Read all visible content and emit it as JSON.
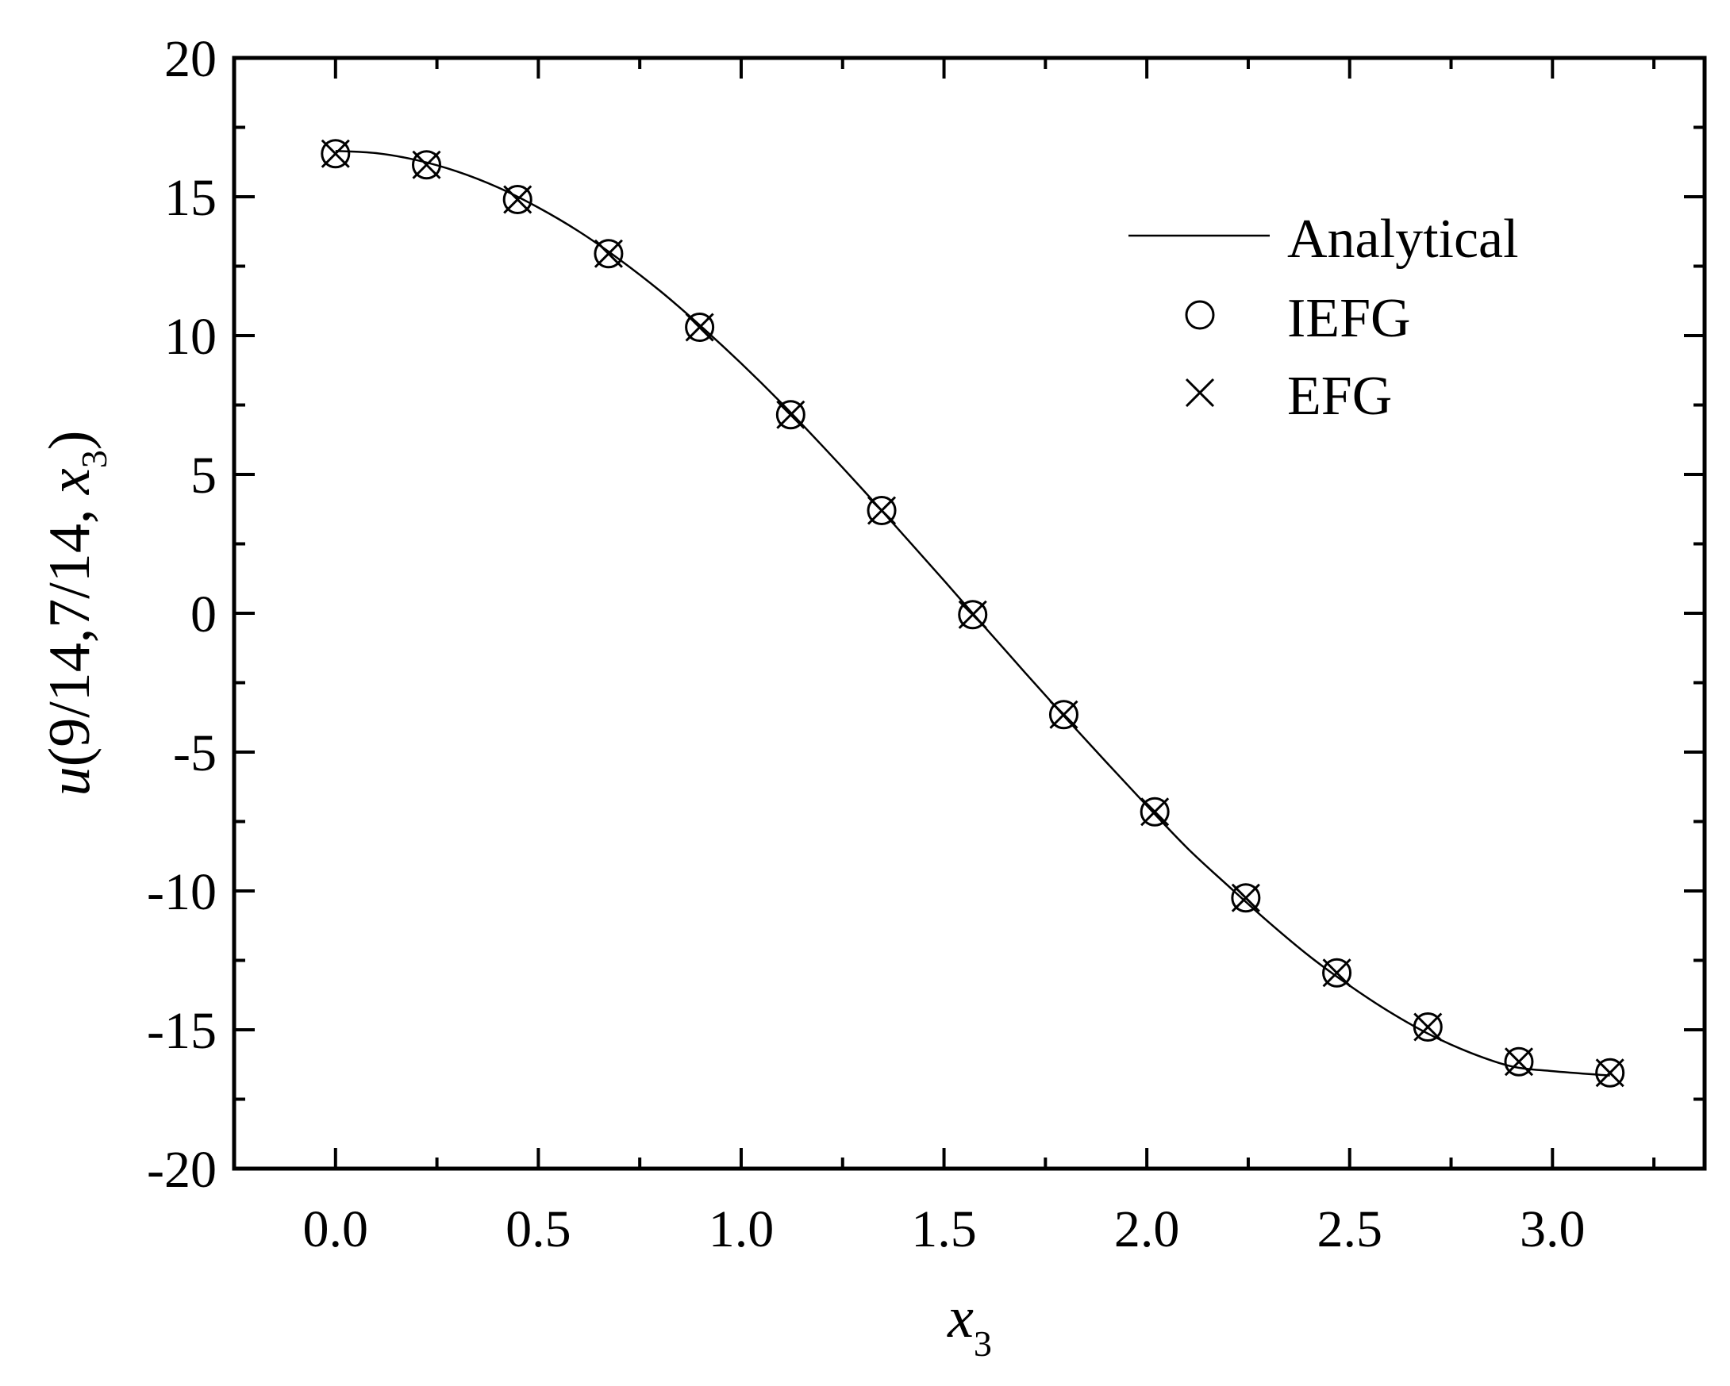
{
  "chart_data": {
    "type": "line",
    "xlabel": {
      "main": "x",
      "sub": "3"
    },
    "ylabel": {
      "prefix": "u",
      "body": "(9/14,7/14, ",
      "var": "x",
      "sub": "3",
      "suffix": ")"
    },
    "xlim": [
      -0.25,
      3.375
    ],
    "ylim": [
      -20,
      20
    ],
    "xticks": [
      0.0,
      0.5,
      1.0,
      1.5,
      2.0,
      2.5,
      3.0
    ],
    "xtick_labels": [
      "0.0",
      "0.5",
      "1.0",
      "1.5",
      "2.0",
      "2.5",
      "3.0"
    ],
    "yticks": [
      20,
      15,
      10,
      5,
      0,
      -5,
      -10,
      -15,
      -20
    ],
    "ytick_labels": [
      "20",
      "15",
      "10",
      "5",
      "0",
      "-5",
      "-10",
      "-15",
      "-20"
    ],
    "grid": false,
    "legend_position": "top-right",
    "series": [
      {
        "name": "Analytical",
        "marker": "none",
        "line": "solid",
        "x": [
          0.0,
          0.1,
          0.2,
          0.3,
          0.4,
          0.5,
          0.6,
          0.7,
          0.8,
          0.9,
          1.0,
          1.1,
          1.2,
          1.3,
          1.4,
          1.5,
          1.6,
          1.7,
          1.8,
          1.9,
          2.0,
          2.1,
          2.2,
          2.3,
          2.4,
          2.5,
          2.6,
          2.7,
          2.8,
          2.9,
          3.0,
          3.1416
        ],
        "values": [
          16.65,
          16.57,
          16.32,
          15.91,
          15.34,
          14.61,
          13.75,
          12.74,
          11.61,
          10.35,
          9.0,
          7.56,
          6.03,
          4.45,
          2.82,
          1.18,
          -0.49,
          -2.14,
          -3.77,
          -5.36,
          -6.93,
          -8.46,
          -9.81,
          -11.12,
          -12.34,
          -13.41,
          -14.37,
          -15.19,
          -15.84,
          -16.32,
          -16.49,
          -16.65
        ]
      },
      {
        "name": "IEFG",
        "marker": "circle",
        "line": "none",
        "x": [
          0.0,
          0.2244,
          0.4488,
          0.6732,
          0.8976,
          1.122,
          1.3464,
          1.5708,
          1.7952,
          2.0196,
          2.244,
          2.4684,
          2.6928,
          2.9172,
          3.1416
        ],
        "values": [
          16.55,
          16.15,
          14.9,
          12.95,
          10.3,
          7.15,
          3.7,
          -0.05,
          -3.65,
          -7.15,
          -10.25,
          -12.95,
          -14.9,
          -16.15,
          -16.55
        ]
      },
      {
        "name": "EFG",
        "marker": "x",
        "line": "none",
        "x": [
          0.0,
          0.2244,
          0.4488,
          0.6732,
          0.8976,
          1.122,
          1.3464,
          1.5708,
          1.7952,
          2.0196,
          2.244,
          2.4684,
          2.6928,
          2.9172,
          3.1416
        ],
        "values": [
          16.55,
          16.15,
          14.9,
          12.95,
          10.3,
          7.15,
          3.7,
          -0.05,
          -3.65,
          -7.15,
          -10.25,
          -12.95,
          -14.9,
          -16.15,
          -16.55
        ]
      }
    ]
  }
}
